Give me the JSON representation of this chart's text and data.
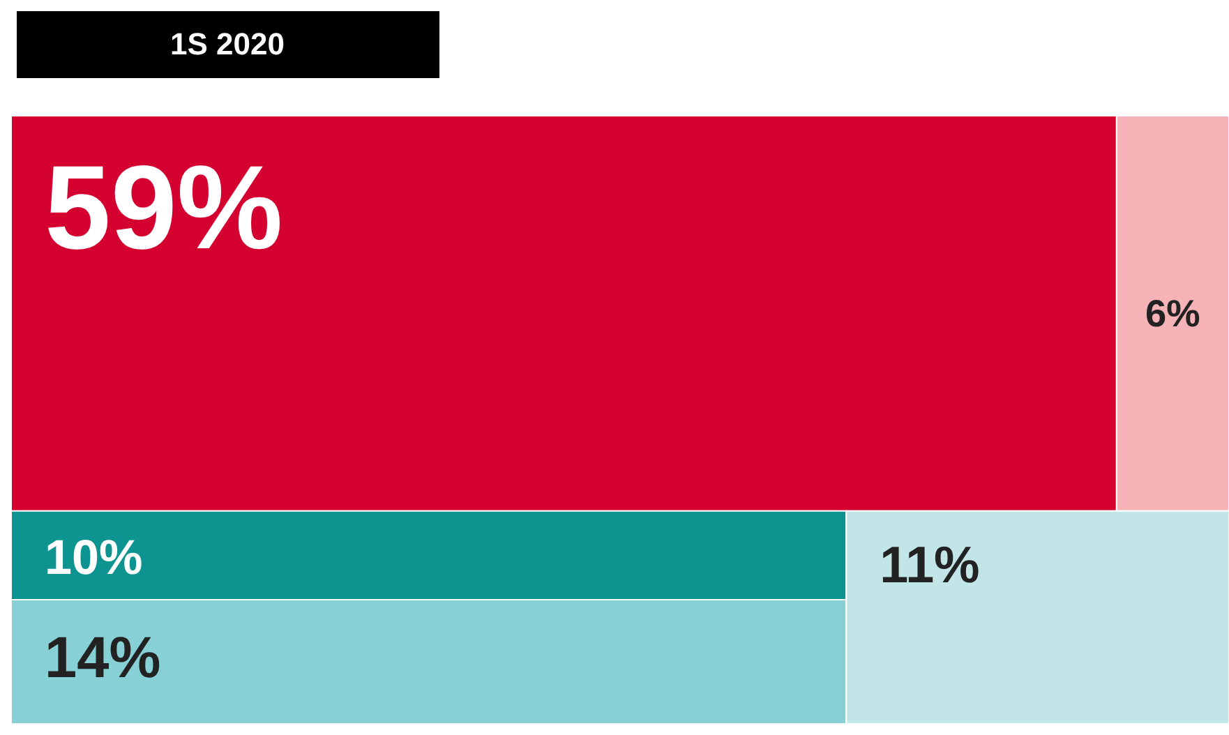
{
  "chart_data": {
    "type": "other",
    "title": "1S 2020",
    "categories": [
      null,
      null,
      null,
      null,
      null
    ],
    "values": [
      59,
      6,
      10,
      14,
      11
    ],
    "colors": [
      "#d40030",
      "#f5b3b8",
      "#0e9490",
      "#86d0d6",
      "#c2e6e8"
    ],
    "value_labels": [
      "59%",
      "6%",
      "10%",
      "14%",
      "11%"
    ]
  }
}
